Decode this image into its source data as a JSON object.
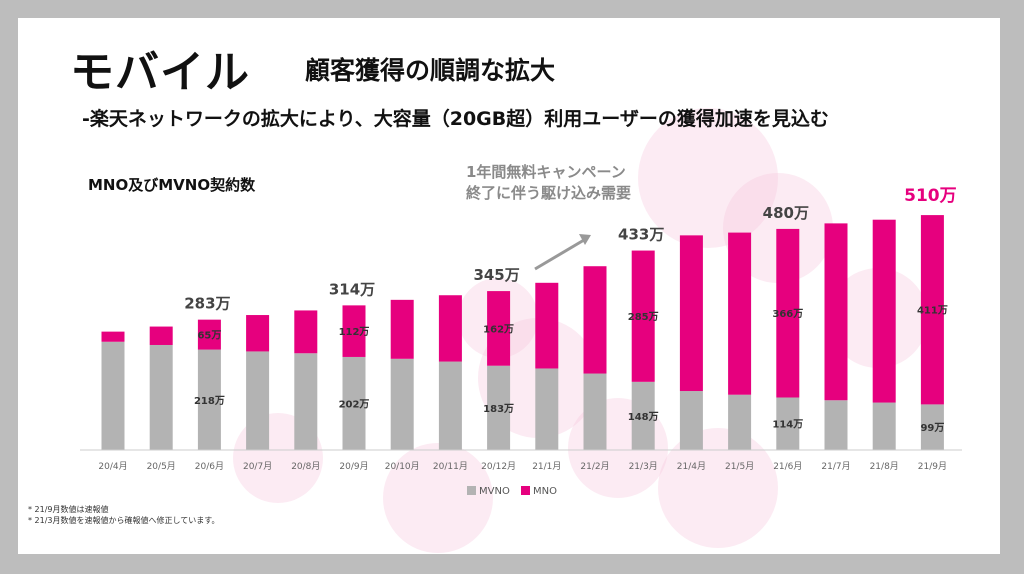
{
  "slide": {
    "title": "モバイル",
    "subtitle": "顧客獲得の順調な拡大",
    "lead": "-楽天ネットワークの拡大により、大容量（20GB超）利用ユーザーの獲得加速を見込む",
    "chart_title": "MNO及びMVNO契約数",
    "callout_lines": [
      "1年間無料キャンペーン",
      "終了に伴う駆け込み需要"
    ],
    "notes": [
      "* 21/9月数値は速報値",
      "* 21/3月数値を速報値から確報値へ修正しています。"
    ]
  },
  "colors": {
    "mvno": "#b3b3b3",
    "mno": "#e6007e",
    "total_label": "#444444",
    "highlight_total": "#e6007e",
    "decoration": "#f7c6dd"
  },
  "chart_data": {
    "type": "bar",
    "stacked": true,
    "categories": [
      "20/4月",
      "20/5月",
      "20/6月",
      "20/7月",
      "20/8月",
      "20/9月",
      "20/10月",
      "20/11月",
      "20/12月",
      "21/1月",
      "21/2月",
      "21/3月",
      "21/4月",
      "21/5月",
      "21/6月",
      "21/7月",
      "21/8月",
      "21/9月"
    ],
    "series": [
      {
        "name": "MVNO",
        "values": [
          235,
          228,
          218,
          214,
          210,
          202,
          198,
          192,
          183,
          177,
          166,
          148,
          128,
          120,
          114,
          108,
          103,
          99
        ]
      },
      {
        "name": "MNO",
        "values": [
          22,
          40,
          65,
          79,
          93,
          112,
          128,
          144,
          162,
          186,
          233,
          285,
          338,
          352,
          366,
          384,
          397,
          411
        ]
      }
    ],
    "totals_labeled": [
      {
        "index": 2,
        "label": "283万"
      },
      {
        "index": 5,
        "label": "314万"
      },
      {
        "index": 8,
        "label": "345万"
      },
      {
        "index": 11,
        "label": "433万"
      },
      {
        "index": 14,
        "label": "480万"
      },
      {
        "index": 17,
        "label": "510万",
        "highlight": true
      }
    ],
    "segment_labels": {
      "mvno": [
        {
          "index": 2,
          "label": "218万"
        },
        {
          "index": 5,
          "label": "202万"
        },
        {
          "index": 8,
          "label": "183万"
        },
        {
          "index": 11,
          "label": "148万"
        },
        {
          "index": 14,
          "label": "114万"
        },
        {
          "index": 17,
          "label": "99万"
        }
      ],
      "mno": [
        {
          "index": 2,
          "label": "65万"
        },
        {
          "index": 5,
          "label": "112万"
        },
        {
          "index": 8,
          "label": "162万"
        },
        {
          "index": 11,
          "label": "285万"
        },
        {
          "index": 14,
          "label": "366万"
        },
        {
          "index": 17,
          "label": "411万"
        }
      ]
    },
    "unit": "万",
    "ylim": [
      0,
      520
    ],
    "legend": [
      {
        "name": "MVNO",
        "color": "#b3b3b3"
      },
      {
        "name": "MNO",
        "color": "#e6007e"
      }
    ],
    "legend_position": "bottom-center",
    "grid": false
  }
}
